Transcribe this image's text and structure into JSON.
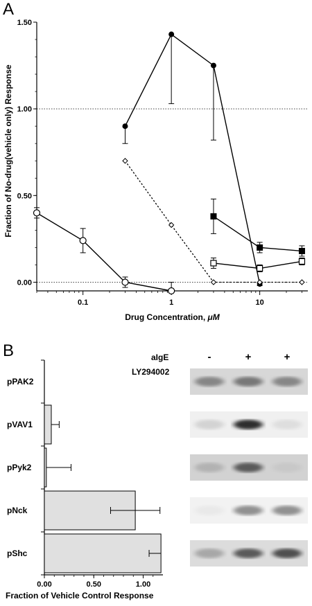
{
  "panel_labels": {
    "a": "A",
    "b": "B"
  },
  "chart_data": [
    {
      "type": "line",
      "panel": "A",
      "xlabel_prefix": "Drug Concentration, ",
      "xlabel_unit": "μM",
      "ylabel": "Fraction of No-drug(vehicle only) Response",
      "x_scale": "log",
      "xlim": [
        0.03,
        35
      ],
      "ylim": [
        -0.05,
        1.5
      ],
      "x_ticks": [
        0.1,
        1,
        10
      ],
      "x_tick_labels": [
        "0.1",
        "1",
        "10"
      ],
      "y_ticks": [
        0.0,
        0.5,
        1.0,
        1.5
      ],
      "y_tick_labels": [
        "0.00",
        "0.50",
        "1.00",
        "1.50"
      ],
      "reference_lines": [
        1.0,
        0.0
      ],
      "series": [
        {
          "marker": "filled-circle",
          "line": "solid",
          "x": [
            0.3,
            1,
            3,
            10
          ],
          "y": [
            0.9,
            1.43,
            1.25,
            -0.01
          ],
          "err": [
            0.1,
            0.4,
            0.43,
            0.01
          ],
          "err_dir": [
            "down",
            "down",
            "down",
            "both"
          ]
        },
        {
          "marker": "open-diamond",
          "line": "dotted",
          "x": [
            0.3,
            1,
            3,
            10,
            30
          ],
          "y": [
            0.7,
            0.33,
            0.0,
            0.0,
            0.0
          ]
        },
        {
          "marker": "open-circle",
          "line": "solid",
          "x": [
            0.03,
            0.1,
            0.3,
            1
          ],
          "y": [
            0.4,
            0.24,
            0.0,
            -0.05
          ],
          "err": [
            0.03,
            0.07,
            0.03,
            0.05
          ],
          "err_dir": [
            "both",
            "both",
            "both",
            "up"
          ]
        },
        {
          "marker": "filled-square",
          "line": "solid",
          "x": [
            3,
            10,
            30
          ],
          "y": [
            0.38,
            0.2,
            0.18
          ],
          "err": [
            0.1,
            0.03,
            0.03
          ],
          "err_dir": [
            "both",
            "both",
            "both"
          ]
        },
        {
          "marker": "open-square",
          "line": "solid",
          "x": [
            3,
            10,
            30
          ],
          "y": [
            0.11,
            0.08,
            0.12
          ],
          "err": [
            0.03,
            0.02,
            0.02
          ],
          "err_dir": [
            "both",
            "both",
            "both"
          ]
        }
      ]
    },
    {
      "type": "bar",
      "panel": "B",
      "orientation": "horizontal",
      "categories": [
        "pPAK2",
        "pVAV1",
        "pPyk2",
        "pNck",
        "pShc"
      ],
      "values": [
        0.0,
        0.07,
        0.02,
        0.92,
        1.18
      ],
      "errors": [
        0.0,
        0.08,
        0.25,
        0.25,
        0.12
      ],
      "error_dir": [
        "right",
        "right",
        "right",
        "both",
        "left"
      ],
      "xlabel": "Fraction of Vehicle Control Response",
      "xlim": [
        0,
        1.2
      ],
      "x_ticks": [
        0.0,
        0.5,
        1.0
      ],
      "x_tick_labels": [
        "0.00",
        "0.50",
        "1.00"
      ],
      "bar_color": "#e0e0e0"
    }
  ],
  "blot": {
    "row_labels": [
      "aIgE",
      "LY294002"
    ],
    "lanes": [
      {
        "aIgE": "-",
        "LY294002": "-"
      },
      {
        "aIgE": "+",
        "LY294002": "-"
      },
      {
        "aIgE": "+",
        "LY294002": "+"
      }
    ],
    "band_intensity": [
      [
        0.55,
        0.62,
        0.55
      ],
      [
        0.2,
        0.95,
        0.15
      ],
      [
        0.35,
        0.75,
        0.25
      ],
      [
        0.1,
        0.5,
        0.5
      ],
      [
        0.4,
        0.75,
        0.8
      ]
    ]
  }
}
